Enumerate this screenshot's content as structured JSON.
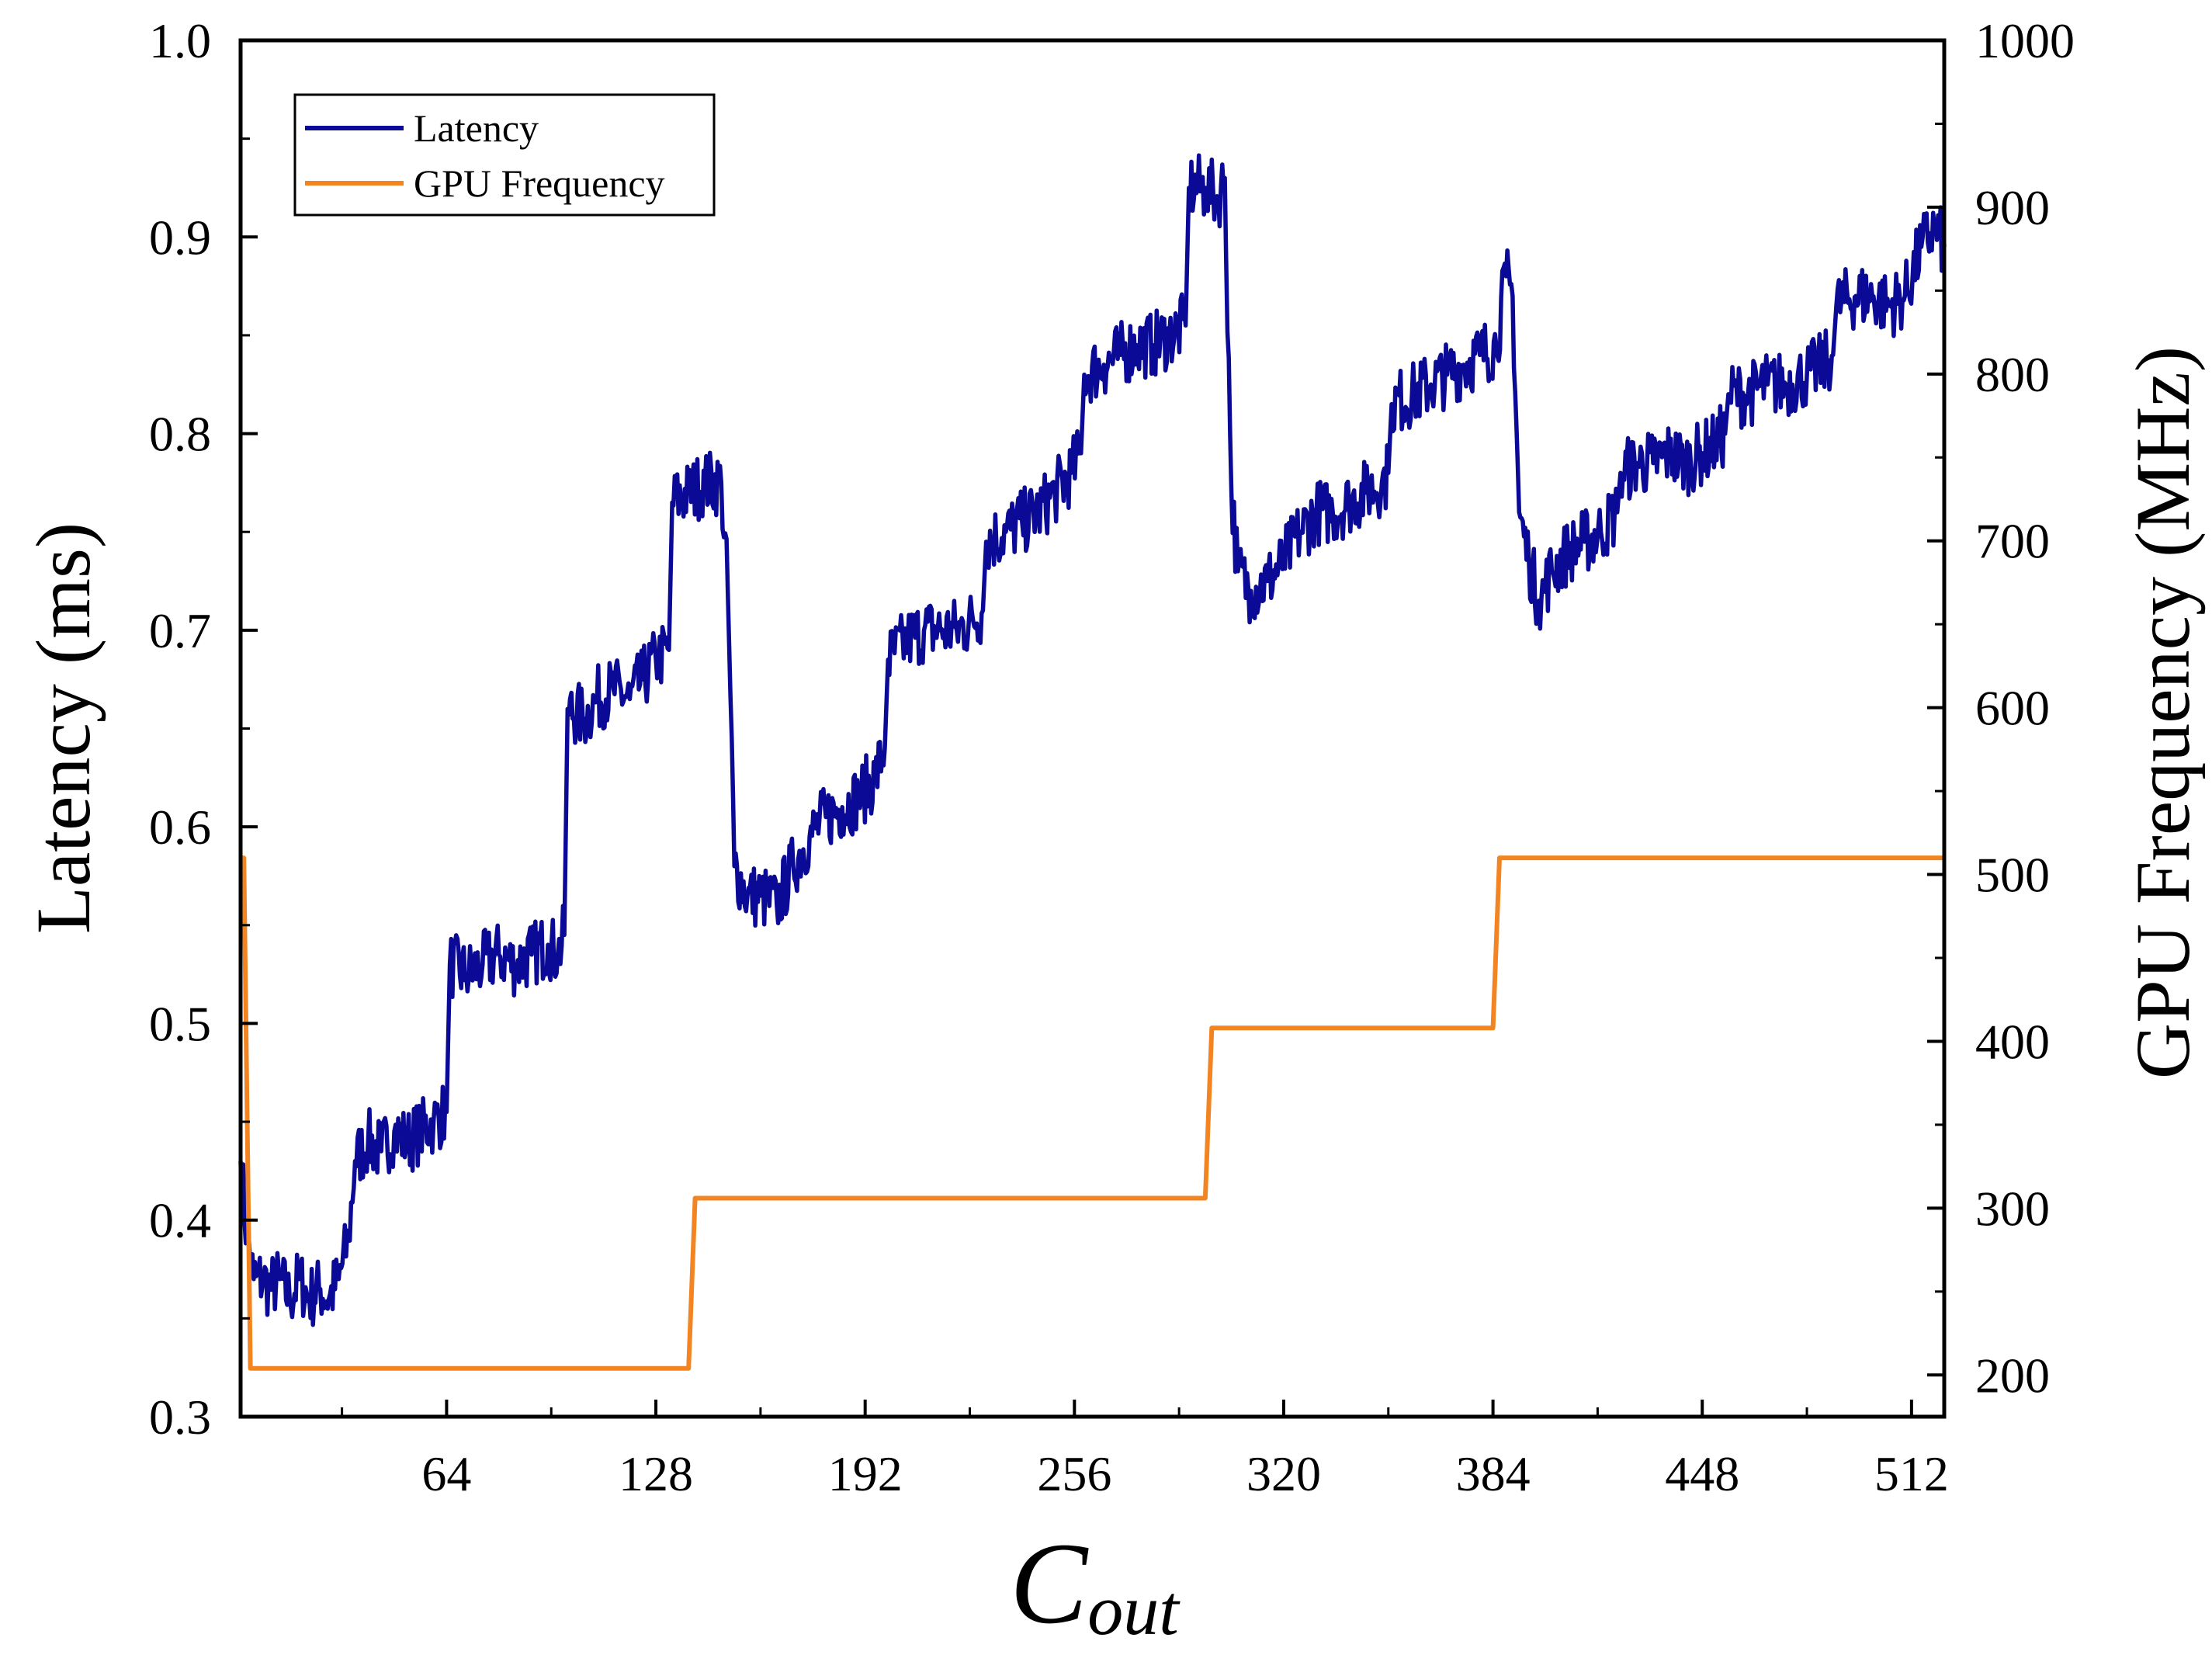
{
  "chart_data": {
    "type": "line",
    "title": "",
    "xlabel_main": "C",
    "xlabel_sub": "out",
    "ylabel_left": "Latency (ms)",
    "ylabel_right": "GPU Frequency (MHz)",
    "xlim": [
      1,
      522
    ],
    "ylim_left": [
      0.3,
      1.0
    ],
    "ylim_right": [
      175,
      1000
    ],
    "x_ticks": [
      64,
      128,
      192,
      256,
      320,
      384,
      448,
      512
    ],
    "x_tick_labels": [
      "64",
      "128",
      "192",
      "256",
      "320",
      "384",
      "448",
      "512"
    ],
    "y_left_ticks": [
      0.3,
      0.4,
      0.5,
      0.6,
      0.7,
      0.8,
      0.9,
      1.0
    ],
    "y_left_tick_labels": [
      "0.3",
      "0.4",
      "0.5",
      "0.6",
      "0.7",
      "0.8",
      "0.9",
      "1.0"
    ],
    "y_right_ticks": [
      200,
      300,
      400,
      500,
      600,
      700,
      800,
      900,
      1000
    ],
    "y_right_tick_labels": [
      "200",
      "300",
      "400",
      "500",
      "600",
      "700",
      "800",
      "900",
      "1000"
    ],
    "legend": {
      "position": "top-left",
      "entries": [
        "Latency",
        "GPU Frequency"
      ]
    },
    "colors": {
      "latency": "#0a0a96",
      "gpu_frequency": "#f28522",
      "axes": "#000000"
    },
    "series": [
      {
        "name": "Latency",
        "axis": "left",
        "points": [
          [
            1,
            0.43
          ],
          [
            3,
            0.39
          ],
          [
            5,
            0.37
          ],
          [
            8,
            0.37
          ],
          [
            10,
            0.365
          ],
          [
            13,
            0.37
          ],
          [
            16,
            0.36
          ],
          [
            19,
            0.37
          ],
          [
            22,
            0.36
          ],
          [
            25,
            0.365
          ],
          [
            28,
            0.36
          ],
          [
            31,
            0.37
          ],
          [
            34,
            0.39
          ],
          [
            36,
            0.43
          ],
          [
            40,
            0.44
          ],
          [
            44,
            0.435
          ],
          [
            48,
            0.445
          ],
          [
            52,
            0.44
          ],
          [
            56,
            0.445
          ],
          [
            60,
            0.45
          ],
          [
            64,
            0.455
          ],
          [
            65,
            0.53
          ],
          [
            70,
            0.525
          ],
          [
            75,
            0.53
          ],
          [
            80,
            0.535
          ],
          [
            85,
            0.53
          ],
          [
            90,
            0.535
          ],
          [
            95,
            0.54
          ],
          [
            98,
            0.535
          ],
          [
            100,
            0.545
          ],
          [
            101,
            0.66
          ],
          [
            106,
            0.655
          ],
          [
            110,
            0.665
          ],
          [
            115,
            0.67
          ],
          [
            120,
            0.665
          ],
          [
            124,
            0.675
          ],
          [
            128,
            0.685
          ],
          [
            132,
            0.69
          ],
          [
            133,
            0.765
          ],
          [
            138,
            0.77
          ],
          [
            143,
            0.775
          ],
          [
            148,
            0.775
          ],
          [
            150,
            0.72
          ],
          [
            152,
            0.58
          ],
          [
            156,
            0.565
          ],
          [
            160,
            0.565
          ],
          [
            165,
            0.56
          ],
          [
            170,
            0.58
          ],
          [
            175,
            0.595
          ],
          [
            180,
            0.605
          ],
          [
            185,
            0.61
          ],
          [
            190,
            0.615
          ],
          [
            195,
            0.625
          ],
          [
            198,
            0.64
          ],
          [
            199,
            0.685
          ],
          [
            205,
            0.695
          ],
          [
            210,
            0.7
          ],
          [
            215,
            0.7
          ],
          [
            220,
            0.7
          ],
          [
            225,
            0.705
          ],
          [
            228,
            0.71
          ],
          [
            229,
            0.745
          ],
          [
            235,
            0.75
          ],
          [
            240,
            0.755
          ],
          [
            245,
            0.76
          ],
          [
            250,
            0.77
          ],
          [
            255,
            0.78
          ],
          [
            258,
            0.79
          ],
          [
            259,
            0.83
          ],
          [
            265,
            0.835
          ],
          [
            270,
            0.84
          ],
          [
            275,
            0.845
          ],
          [
            280,
            0.845
          ],
          [
            285,
            0.85
          ],
          [
            290,
            0.855
          ],
          [
            291,
            0.925
          ],
          [
            296,
            0.925
          ],
          [
            300,
            0.92
          ],
          [
            302,
            0.93
          ],
          [
            304,
            0.77
          ],
          [
            306,
            0.73
          ],
          [
            310,
            0.72
          ],
          [
            315,
            0.725
          ],
          [
            320,
            0.735
          ],
          [
            325,
            0.75
          ],
          [
            330,
            0.76
          ],
          [
            335,
            0.76
          ],
          [
            340,
            0.765
          ],
          [
            345,
            0.77
          ],
          [
            350,
            0.775
          ],
          [
            352,
            0.78
          ],
          [
            353,
            0.815
          ],
          [
            360,
            0.82
          ],
          [
            365,
            0.825
          ],
          [
            370,
            0.83
          ],
          [
            375,
            0.835
          ],
          [
            380,
            0.84
          ],
          [
            385,
            0.845
          ],
          [
            388,
            0.88
          ],
          [
            390,
            0.87
          ],
          [
            392,
            0.76
          ],
          [
            395,
            0.735
          ],
          [
            398,
            0.715
          ],
          [
            402,
            0.73
          ],
          [
            407,
            0.74
          ],
          [
            412,
            0.745
          ],
          [
            417,
            0.75
          ],
          [
            422,
            0.76
          ],
          [
            423,
            0.78
          ],
          [
            428,
            0.785
          ],
          [
            433,
            0.785
          ],
          [
            438,
            0.79
          ],
          [
            443,
            0.785
          ],
          [
            448,
            0.79
          ],
          [
            452,
            0.795
          ],
          [
            455,
            0.8
          ],
          [
            456,
            0.82
          ],
          [
            462,
            0.82
          ],
          [
            468,
            0.825
          ],
          [
            474,
            0.825
          ],
          [
            480,
            0.83
          ],
          [
            485,
            0.835
          ],
          [
            488,
            0.84
          ],
          [
            489,
            0.865
          ],
          [
            495,
            0.87
          ],
          [
            500,
            0.87
          ],
          [
            505,
            0.865
          ],
          [
            510,
            0.87
          ],
          [
            515,
            0.895
          ],
          [
            519,
            0.905
          ],
          [
            522,
            0.895
          ]
        ]
      },
      {
        "name": "GPU Frequency",
        "axis": "right",
        "points": [
          [
            1,
            510
          ],
          [
            2,
            510
          ],
          [
            4,
            204
          ],
          [
            138,
            204
          ],
          [
            140,
            306
          ],
          [
            296,
            306
          ],
          [
            298,
            408
          ],
          [
            384,
            408
          ],
          [
            386,
            510
          ],
          [
            522,
            510
          ]
        ]
      }
    ]
  }
}
